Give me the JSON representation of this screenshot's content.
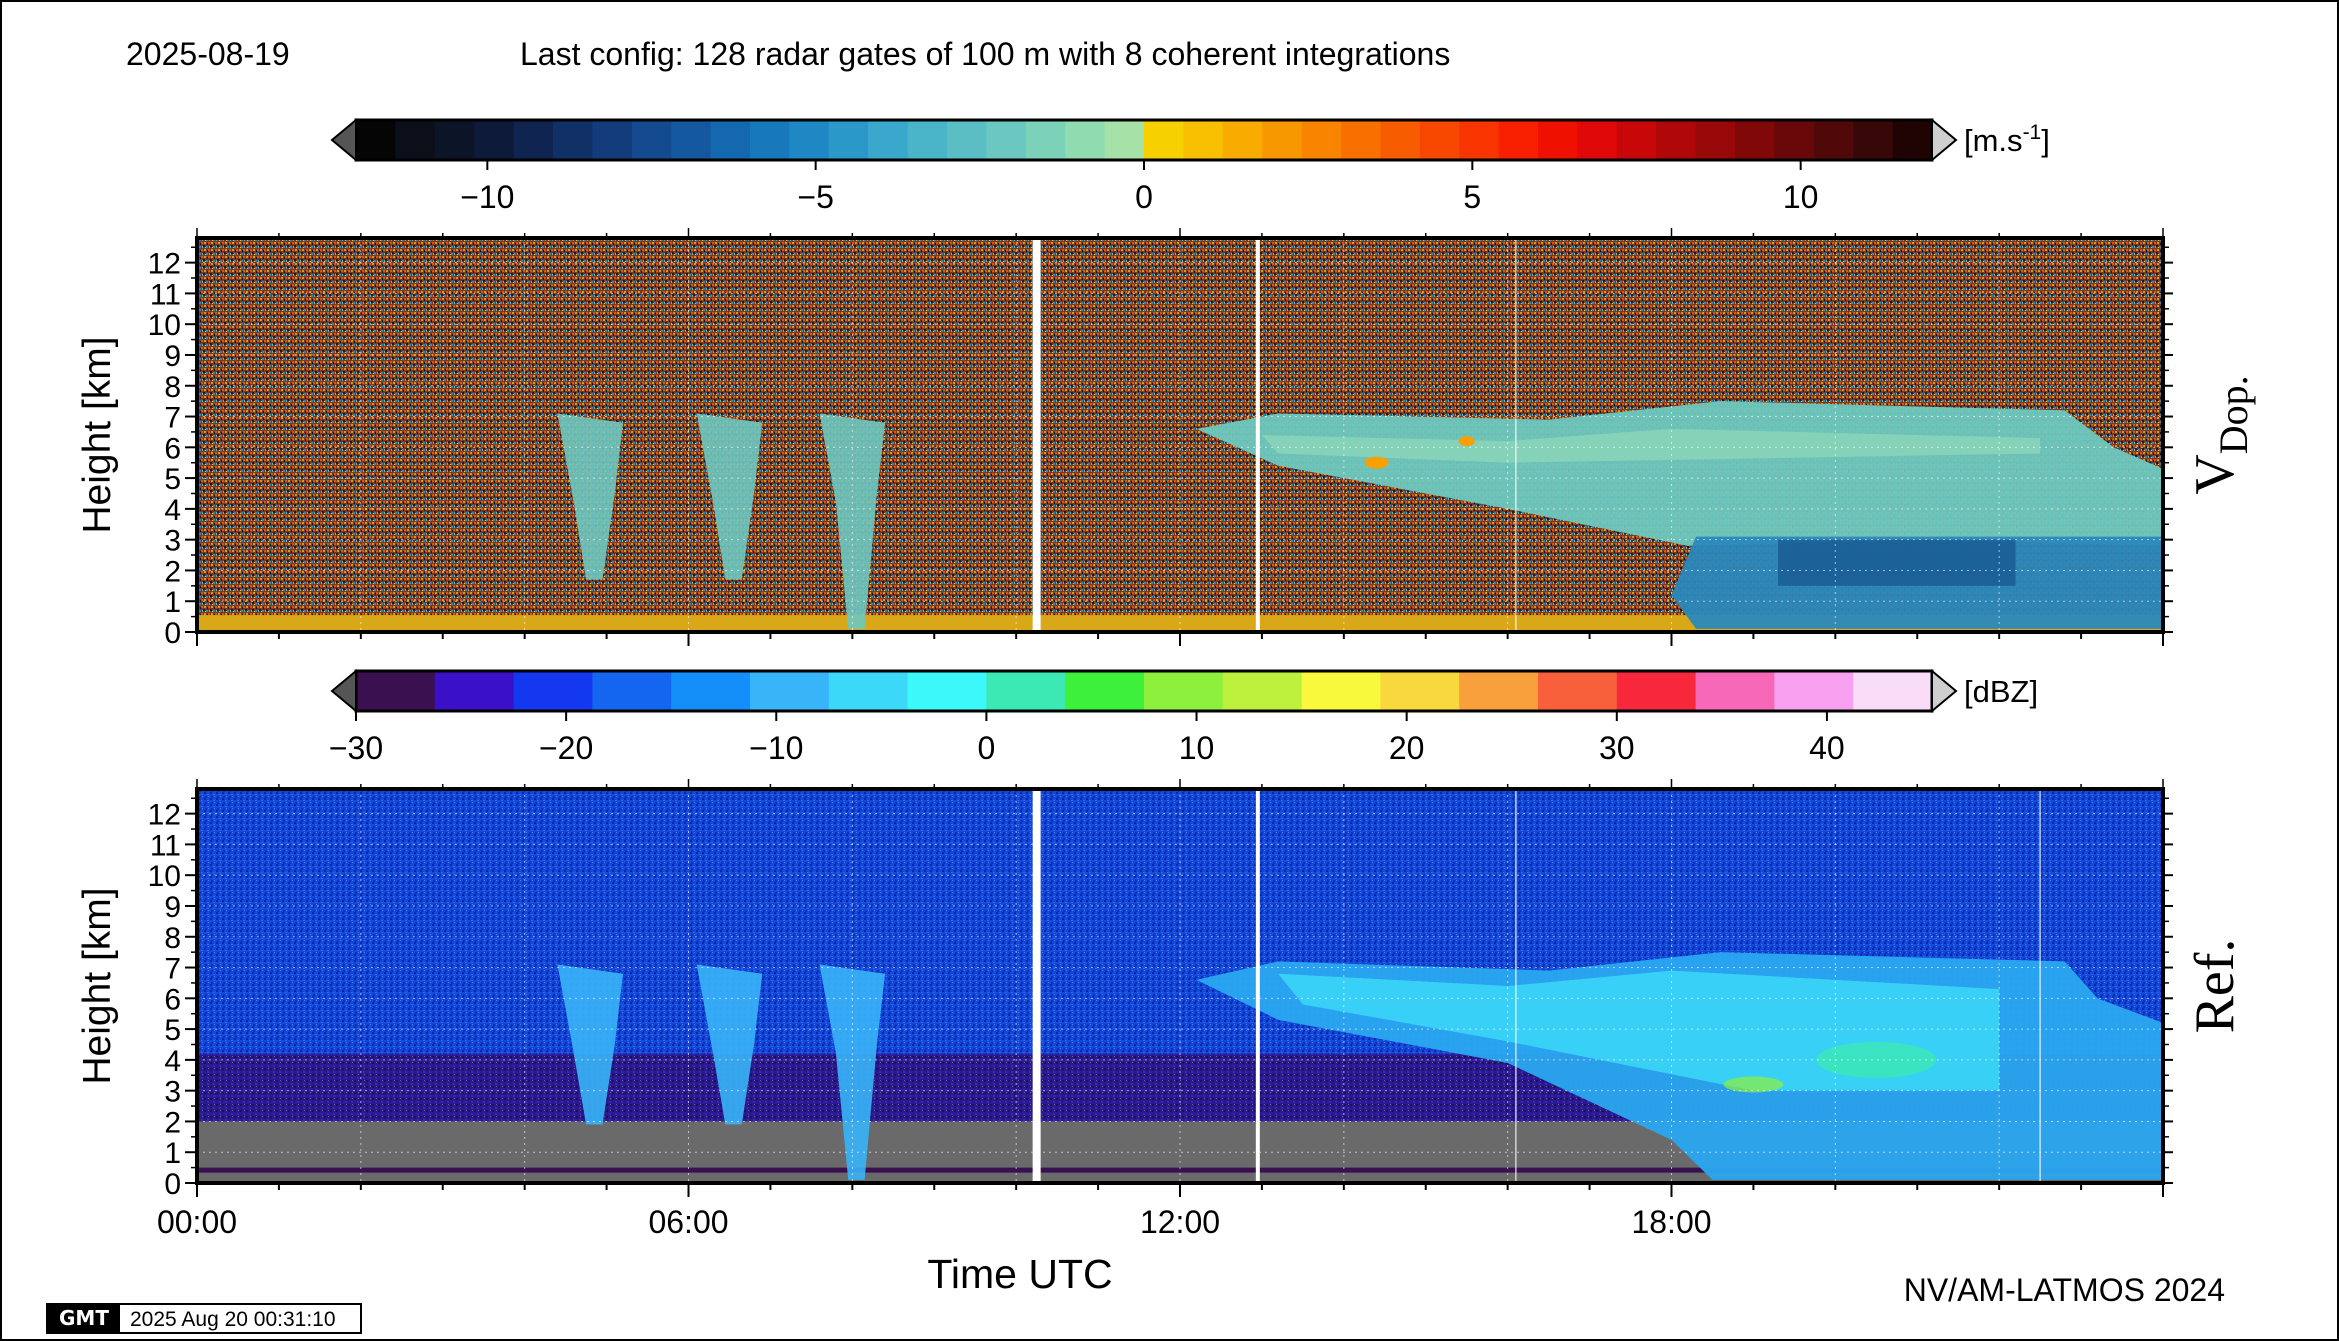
{
  "header": {
    "date": "2025-08-19",
    "config": "Last config: 128 radar gates of 100 m with 8 coherent integrations"
  },
  "footer": {
    "credit": "NV/AM-LATMOS 2024",
    "stamp_logo": "GMT",
    "timestamp": "2025 Aug 20 00:31:10"
  },
  "chart_data": [
    {
      "type": "heatmap",
      "panel_label": "V",
      "panel_label_sub": "Dop.",
      "ylabel": "Height [km]",
      "xlabel": "",
      "x_range_hours": [
        0,
        24
      ],
      "ylim": [
        0,
        12.8
      ],
      "yticks": [
        0,
        1,
        2,
        3,
        4,
        5,
        6,
        7,
        8,
        9,
        10,
        11,
        12
      ],
      "grid": true,
      "colorbar": {
        "unit": "[m.s-1]",
        "range": [
          -12,
          12
        ],
        "ticks": [
          -10,
          -5,
          0,
          5,
          10
        ],
        "tick_labels": [
          "−10",
          "−5",
          "0",
          "5",
          "10"
        ],
        "colors": [
          "#050505",
          "#0a0f1a",
          "#0c1428",
          "#0e1a3a",
          "#0f2450",
          "#103066",
          "#123c7c",
          "#144a90",
          "#1458a0",
          "#1468b0",
          "#1878bc",
          "#1e88c4",
          "#2a98c8",
          "#3aa8cc",
          "#4ab4c8",
          "#5abec4",
          "#6ac8c0",
          "#7cd2b8",
          "#90dcb0",
          "#a6e2a8",
          "#f7d000",
          "#f8c000",
          "#f8ac00",
          "#f89800",
          "#f88400",
          "#f87000",
          "#f85c00",
          "#f84800",
          "#f83400",
          "#f82000",
          "#f01000",
          "#e00808",
          "#c80808",
          "#b00808",
          "#980808",
          "#800808",
          "#680808",
          "#500808",
          "#380808",
          "#200404"
        ]
      },
      "data_gaps_hours": [
        10.25,
        12.95
      ],
      "features": {
        "noise_above_signal": true,
        "precip_fallstreaks_hours": [
          4.6,
          6.3,
          7.8
        ],
        "cloud_layer_km": [
          3,
          7.5
        ],
        "cloud_start_hours": 12.2,
        "low_level_fall_velocity_from_hours": 18.3
      }
    },
    {
      "type": "heatmap",
      "panel_label": "Ref.",
      "ylabel": "Height [km]",
      "xlabel": "Time UTC",
      "x_range_hours": [
        0,
        24
      ],
      "xticks_hours": [
        0,
        6,
        12,
        18
      ],
      "xtick_labels": [
        "00:00",
        "06:00",
        "12:00",
        "18:00"
      ],
      "ylim": [
        0,
        12.8
      ],
      "yticks": [
        0,
        1,
        2,
        3,
        4,
        5,
        6,
        7,
        8,
        9,
        10,
        11,
        12
      ],
      "grid": true,
      "colorbar": {
        "unit": "[dBZ]",
        "range": [
          -30,
          45
        ],
        "ticks": [
          -30,
          -20,
          -10,
          0,
          10,
          20,
          30,
          40
        ],
        "tick_labels": [
          "−30",
          "−20",
          "−10",
          "0",
          "10",
          "20",
          "30",
          "40"
        ],
        "colors": [
          "#3a1050",
          "#3a10c8",
          "#1438f0",
          "#1466f0",
          "#148ef8",
          "#38b4f8",
          "#3cd8f8",
          "#3cf8f8",
          "#3ce8b4",
          "#3cf03c",
          "#8cf03c",
          "#bcf03c",
          "#f8f83c",
          "#f8d83c",
          "#f8a03c",
          "#f8603c",
          "#f8283c",
          "#f868b8",
          "#f8a0f0",
          "#f8dcf8"
        ]
      },
      "data_gaps_hours": [
        10.25,
        12.95
      ],
      "features": {
        "gray_low_layer_km": [
          0,
          2
        ],
        "precip_fallstreaks_hours": [
          4.6,
          6.3,
          7.8
        ],
        "cloud_layer_km": [
          3,
          7.5
        ],
        "cloud_start_hours": 12.2,
        "precip_to_ground_from_hours": 18.5
      }
    }
  ]
}
